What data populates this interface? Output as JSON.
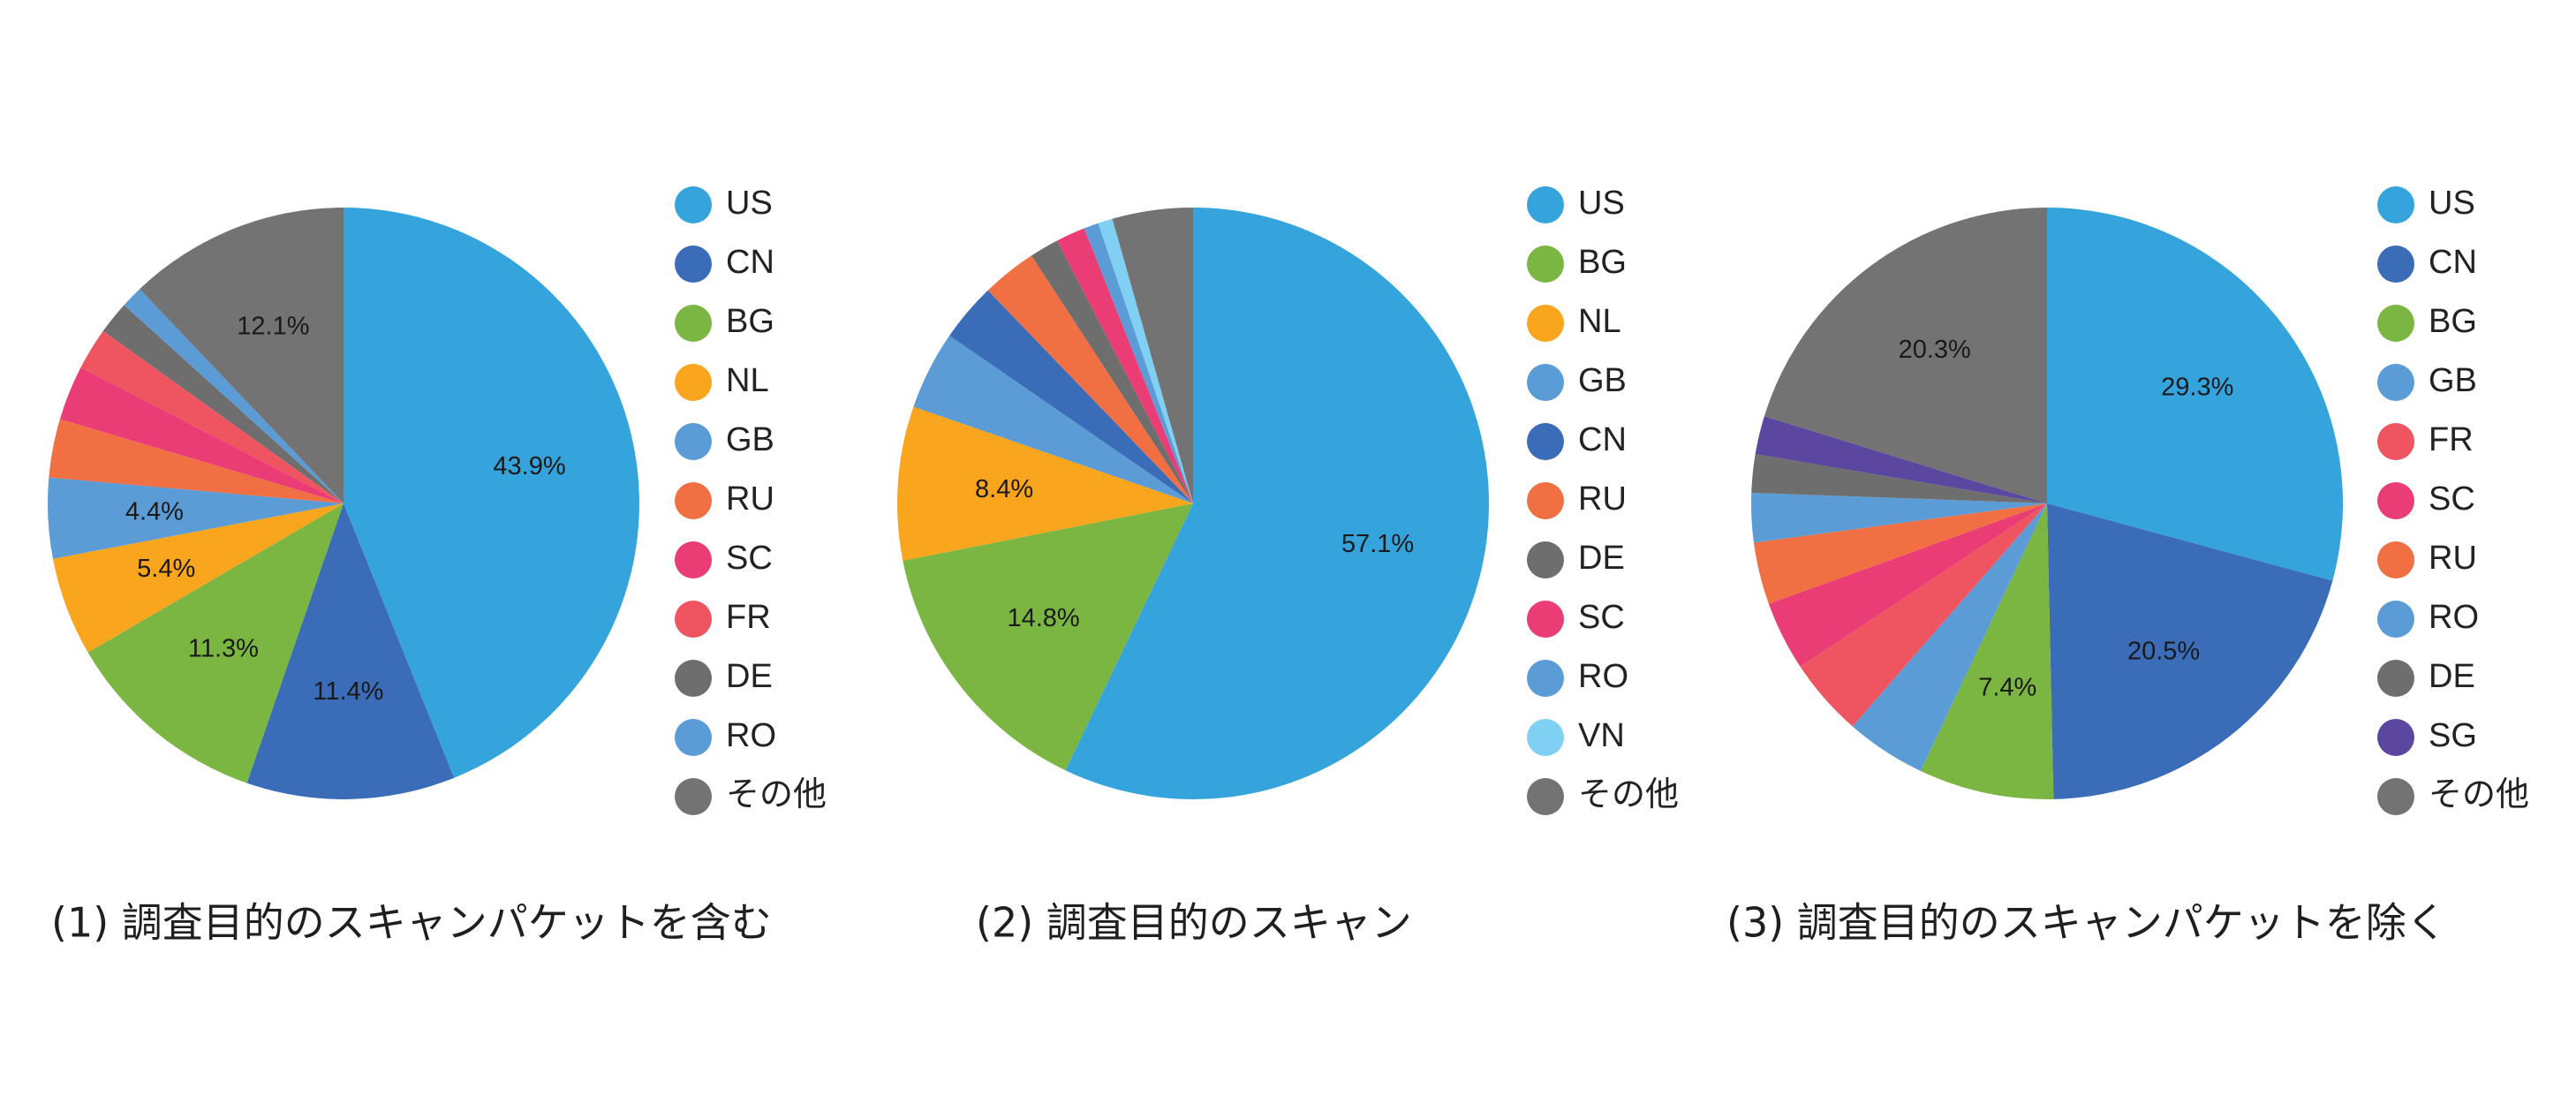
{
  "chart_data": [
    {
      "type": "pie",
      "title": "(1) 調査目的のスキャンパケットを含む",
      "legend": "right",
      "slices": [
        {
          "label": "US",
          "value": 43.9,
          "show": "43.9%",
          "color": "#35a4dd"
        },
        {
          "label": "CN",
          "value": 11.4,
          "show": "11.4%",
          "color": "#3a6cb8"
        },
        {
          "label": "BG",
          "value": 11.3,
          "show": "11.3%",
          "color": "#7bb642"
        },
        {
          "label": "NL",
          "value": 5.4,
          "show": "5.4%",
          "color": "#f9a51d"
        },
        {
          "label": "GB",
          "value": 4.4,
          "show": "4.4%",
          "color": "#5b9cd6"
        },
        {
          "label": "RU",
          "value": 3.2,
          "show": "",
          "color": "#f06f43"
        },
        {
          "label": "SC",
          "value": 3.0,
          "show": "",
          "color": "#ea3c75"
        },
        {
          "label": "FR",
          "value": 2.3,
          "show": "",
          "color": "#ee5560"
        },
        {
          "label": "DE",
          "value": 1.8,
          "show": "",
          "color": "#6e6e6e"
        },
        {
          "label": "RO",
          "value": 1.2,
          "show": "",
          "color": "#5b9cd6"
        },
        {
          "label": "その他",
          "value": 12.1,
          "show": "12.1%",
          "color": "#737373"
        }
      ]
    },
    {
      "type": "pie",
      "title": "(2) 調査目的のスキャン",
      "legend": "right",
      "slices": [
        {
          "label": "US",
          "value": 57.1,
          "show": "57.1%",
          "color": "#35a4dd"
        },
        {
          "label": "BG",
          "value": 14.8,
          "show": "14.8%",
          "color": "#7bb642"
        },
        {
          "label": "NL",
          "value": 8.4,
          "show": "8.4%",
          "color": "#f9a51d"
        },
        {
          "label": "GB",
          "value": 4.3,
          "show": "",
          "color": "#5b9cd6"
        },
        {
          "label": "CN",
          "value": 3.2,
          "show": "",
          "color": "#3a6cb8"
        },
        {
          "label": "RU",
          "value": 3.0,
          "show": "",
          "color": "#f06f43"
        },
        {
          "label": "DE",
          "value": 1.6,
          "show": "",
          "color": "#6e6e6e"
        },
        {
          "label": "SC",
          "value": 1.6,
          "show": "",
          "color": "#ea3c75"
        },
        {
          "label": "RO",
          "value": 0.8,
          "show": "",
          "color": "#5b9cd6"
        },
        {
          "label": "VN",
          "value": 0.8,
          "show": "",
          "color": "#7fd0f3"
        },
        {
          "label": "その他",
          "value": 4.4,
          "show": "",
          "color": "#737373"
        }
      ]
    },
    {
      "type": "pie",
      "title": "(3) 調査目的のスキャンパケットを除く",
      "legend": "right",
      "slices": [
        {
          "label": "US",
          "value": 29.3,
          "show": "29.3%",
          "color": "#35a4dd"
        },
        {
          "label": "CN",
          "value": 20.5,
          "show": "20.5%",
          "color": "#3a6cb8"
        },
        {
          "label": "BG",
          "value": 7.4,
          "show": "7.4%",
          "color": "#7bb642"
        },
        {
          "label": "GB",
          "value": 4.4,
          "show": "",
          "color": "#5b9cd6"
        },
        {
          "label": "FR",
          "value": 4.3,
          "show": "",
          "color": "#ee5560"
        },
        {
          "label": "SC",
          "value": 3.8,
          "show": "",
          "color": "#ea3c75"
        },
        {
          "label": "RU",
          "value": 3.4,
          "show": "",
          "color": "#f06f43"
        },
        {
          "label": "RO",
          "value": 2.7,
          "show": "",
          "color": "#5b9cd6"
        },
        {
          "label": "DE",
          "value": 2.1,
          "show": "",
          "color": "#6e6e6e"
        },
        {
          "label": "SG",
          "value": 2.1,
          "show": "",
          "color": "#5b47a0"
        },
        {
          "label": "その他",
          "value": 20.3,
          "show": "20.3%",
          "color": "#737373"
        }
      ]
    }
  ]
}
